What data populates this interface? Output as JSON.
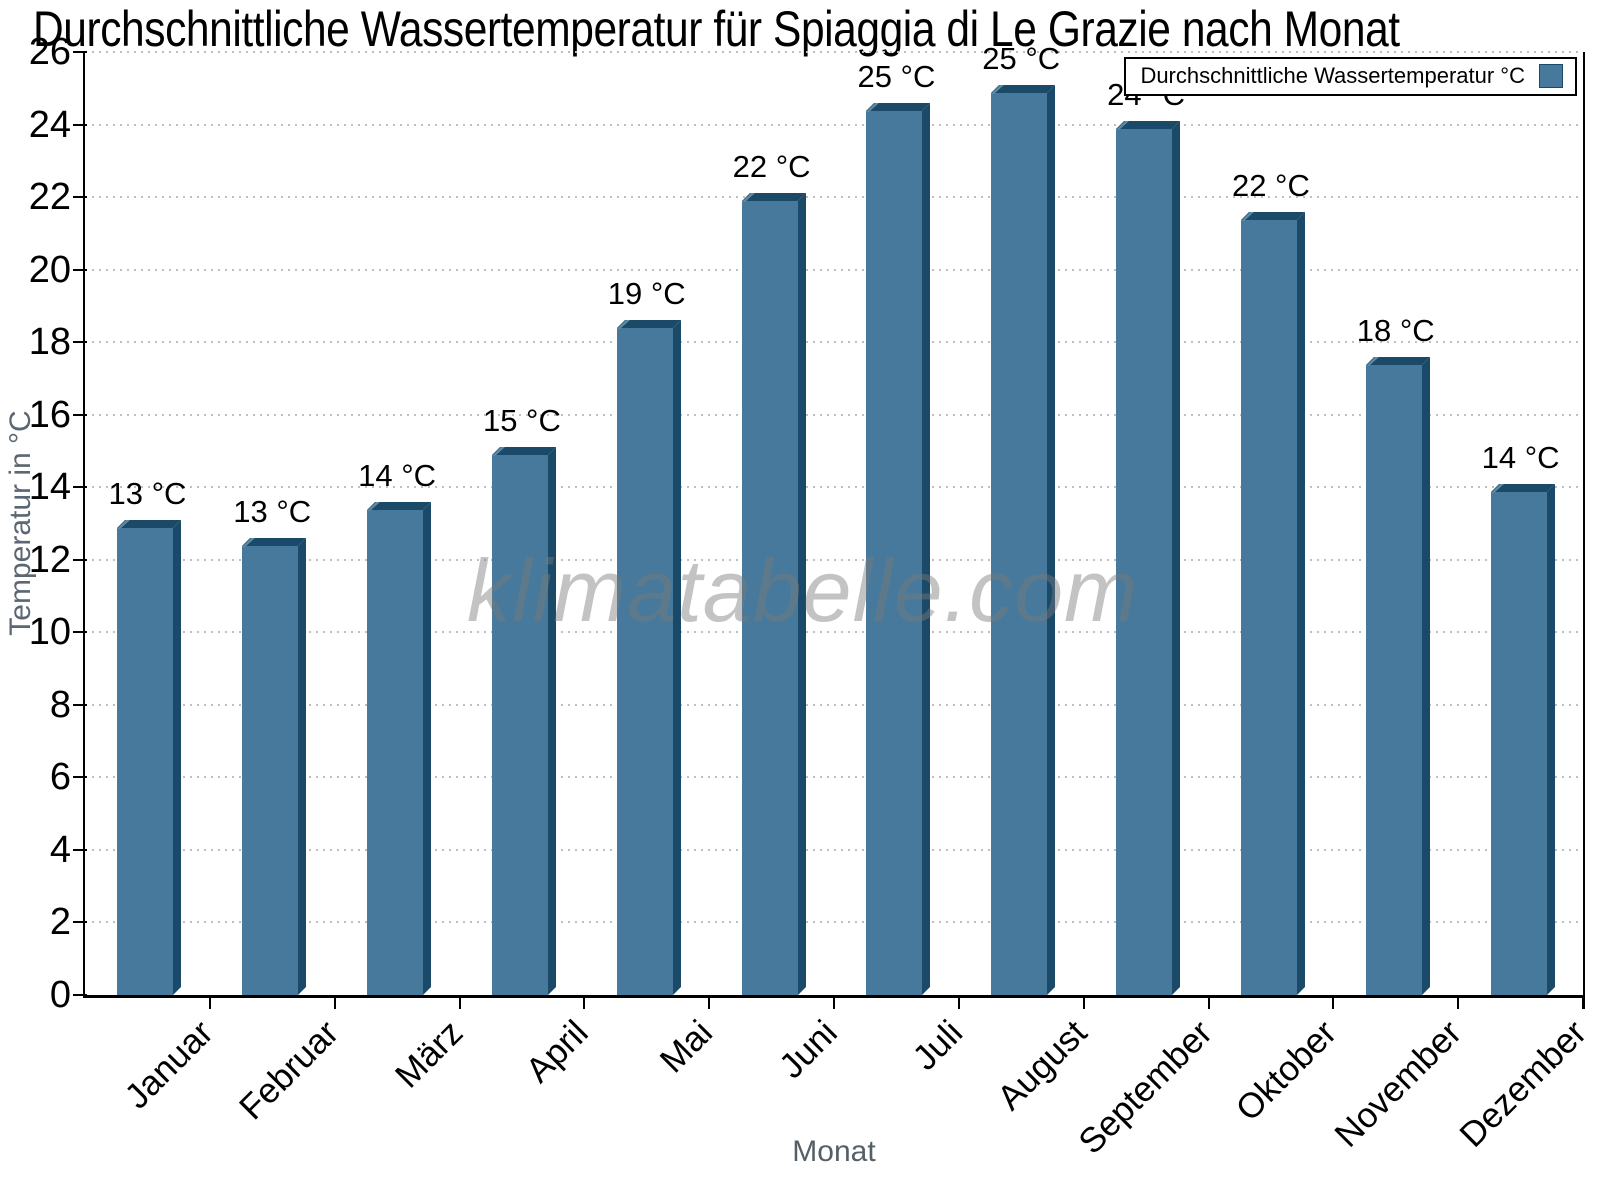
{
  "title": "Durchschnittliche Wassertemperatur für Spiaggia di Le Grazie nach Monat",
  "legend": {
    "label": "Durchschnittliche Wassertemperatur °C"
  },
  "watermark": "klimatabelle.com",
  "axes": {
    "x_title": "Monat",
    "y_title": "Temperatur in °C"
  },
  "chart_data": {
    "type": "bar",
    "title": "Durchschnittliche Wassertemperatur für Spiaggia di Le Grazie nach Monat",
    "xlabel": "Monat",
    "ylabel": "Temperatur in °C",
    "categories": [
      "Januar",
      "Februar",
      "März",
      "April",
      "Mai",
      "Juni",
      "Juli",
      "August",
      "September",
      "Oktober",
      "November",
      "Dezember"
    ],
    "series": [
      {
        "name": "Durchschnittliche Wassertemperatur °C",
        "values": [
          13.1,
          12.6,
          13.6,
          15.1,
          18.6,
          22.1,
          24.6,
          25.1,
          24.1,
          21.6,
          17.6,
          14.1
        ]
      }
    ],
    "bar_labels": [
      "13 °C",
      "13 °C",
      "14 °C",
      "15 °C",
      "19 °C",
      "22 °C",
      "25 °C",
      "25 °C",
      "24 °C",
      "22 °C",
      "18 °C",
      "14 °C"
    ],
    "ylim": [
      0,
      26
    ],
    "ytick_step": 2,
    "yticks": [
      0,
      2,
      4,
      6,
      8,
      10,
      12,
      14,
      16,
      18,
      20,
      22,
      24,
      26
    ],
    "grid": "horizontal-dotted",
    "legend_position": "top-right",
    "bar_face_color": "#46799b",
    "bar_edge_color": "#1b4a69",
    "bar_highlight_color": "#5e8aa6"
  },
  "colors": {
    "bar_face": "#46799b",
    "bar_edge": "#1b4a69",
    "bar_highlight": "#5e8aa6",
    "axis": "#000000",
    "grid": "#bfbfbf",
    "y_axis_title": "#5b6773",
    "x_axis_title": "#555f66",
    "watermark_gray": "#7a7a7a"
  }
}
